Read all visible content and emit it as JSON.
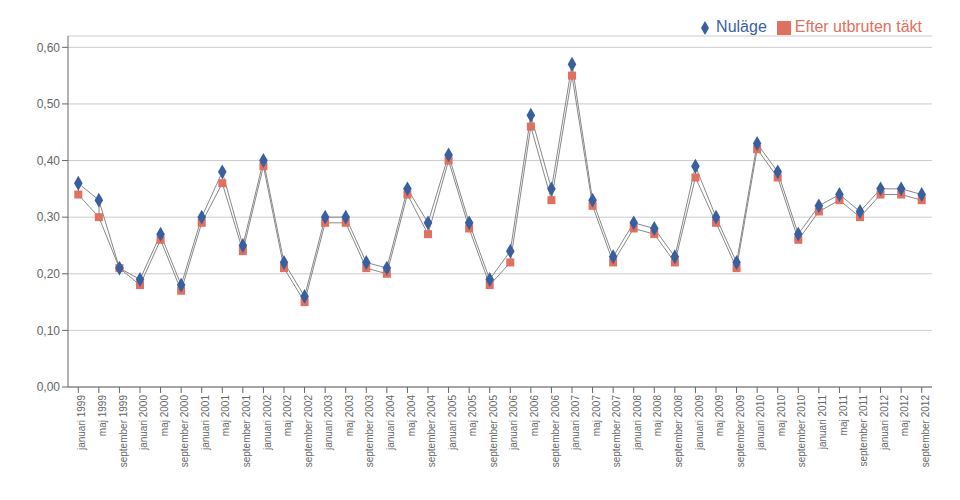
{
  "chart_data": {
    "type": "line",
    "categories": [
      "januari 1999",
      "maj 1999",
      "september 1999",
      "januari 2000",
      "maj 2000",
      "september 2000",
      "januari 2001",
      "maj 2001",
      "september 2001",
      "januari 2002",
      "maj 2002",
      "september 2002",
      "januari 2003",
      "maj 2003",
      "september 2003",
      "januari 2004",
      "maj 2004",
      "september 2004",
      "januari 2005",
      "maj 2005",
      "september 2005",
      "januari 2006",
      "maj 2006",
      "september 2006",
      "januari 2007",
      "maj 2007",
      "september 2007",
      "januari 2008",
      "maj 2008",
      "september 2008",
      "januari 2009",
      "maj 2009",
      "september 2009",
      "januari 2010",
      "maj 2010",
      "september 2010",
      "januari 2011",
      "maj 2011",
      "september 2011",
      "januari 2012",
      "maj 2012",
      "september 2012"
    ],
    "series": [
      {
        "name": "Nuläge",
        "color": "#3a5f9e",
        "marker": "diamond",
        "values": [
          0.36,
          0.33,
          0.21,
          0.19,
          0.27,
          0.18,
          0.3,
          0.38,
          0.25,
          0.4,
          0.22,
          0.16,
          0.3,
          0.3,
          0.22,
          0.21,
          0.35,
          0.29,
          0.41,
          0.29,
          0.19,
          0.24,
          0.48,
          0.35,
          0.57,
          0.33,
          0.23,
          0.29,
          0.28,
          0.23,
          0.39,
          0.3,
          0.22,
          0.43,
          0.38,
          0.27,
          0.32,
          0.34,
          0.31,
          0.35,
          0.35,
          0.34
        ]
      },
      {
        "name": "Efter utbruten täkt",
        "color": "#e07060",
        "marker": "square",
        "values": [
          0.34,
          0.3,
          0.21,
          0.18,
          0.26,
          0.17,
          0.29,
          0.36,
          0.24,
          0.39,
          0.21,
          0.15,
          0.29,
          0.29,
          0.21,
          0.2,
          0.34,
          0.27,
          0.4,
          0.28,
          0.18,
          0.22,
          0.46,
          0.33,
          0.55,
          0.32,
          0.22,
          0.28,
          0.27,
          0.22,
          0.37,
          0.29,
          0.21,
          0.42,
          0.37,
          0.26,
          0.31,
          0.33,
          0.3,
          0.34,
          0.34,
          0.33
        ]
      }
    ],
    "ylim": [
      0,
      0.62
    ],
    "yticks": [
      {
        "value": 0,
        "label": "0,00"
      },
      {
        "value": 0.1,
        "label": "0,10"
      },
      {
        "value": 0.2,
        "label": "0,20"
      },
      {
        "value": 0.3,
        "label": "0,30"
      },
      {
        "value": 0.4,
        "label": "0,40"
      },
      {
        "value": 0.5,
        "label": "0,50"
      },
      {
        "value": 0.6,
        "label": "0,60"
      }
    ],
    "grid": true,
    "legend": "upper right"
  }
}
